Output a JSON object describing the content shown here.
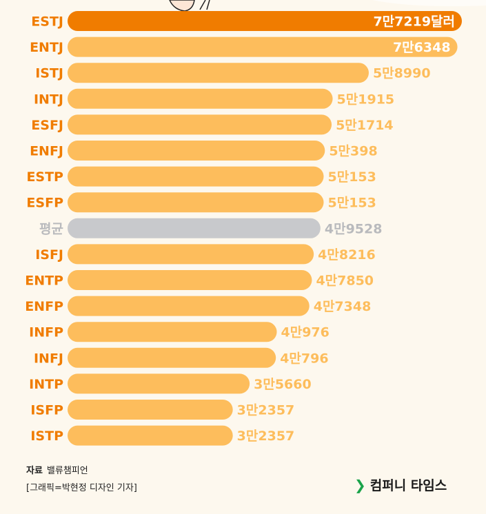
{
  "chart_data": {
    "type": "bar",
    "orientation": "horizontal",
    "categories": [
      "ESTJ",
      "ENTJ",
      "ISTJ",
      "INTJ",
      "ESFJ",
      "ENFJ",
      "ESTP",
      "ESFP",
      "평균",
      "ISFJ",
      "ENTP",
      "ENFP",
      "INFP",
      "INFJ",
      "INTP",
      "ISFP",
      "ISTP"
    ],
    "values": [
      77219,
      76348,
      58990,
      51915,
      51714,
      50398,
      50153,
      50153,
      49528,
      48216,
      47850,
      47348,
      40976,
      40796,
      35660,
      32357,
      32357
    ],
    "value_labels": [
      "7만7219달러",
      "7만6348",
      "5만8990",
      "5만1915",
      "5만1714",
      "5만398",
      "5만153",
      "5만153",
      "4만9528",
      "4만8216",
      "4만7850",
      "4만7348",
      "4만976",
      "4만796",
      "3만5660",
      "3만2357",
      "3만2357"
    ],
    "unit": "달러",
    "highlight_index": 0,
    "average_index": 8
  },
  "colors": {
    "highlight": "#f07c00",
    "bar": "#fdbd5c",
    "average": "#c8c9cc",
    "label": "#f07c00",
    "average_label": "#b9babd",
    "highlight_value": "#ffffff",
    "inside_value": "#ffffff",
    "background": "#fdf8ee"
  },
  "source": {
    "prefix": "자료",
    "name": "밸류챔피언"
  },
  "credit": "[그래픽=박현정 디자인 기자]",
  "brand": {
    "icon": "chevron-right-icon",
    "name": "컴퍼니 타임스"
  }
}
